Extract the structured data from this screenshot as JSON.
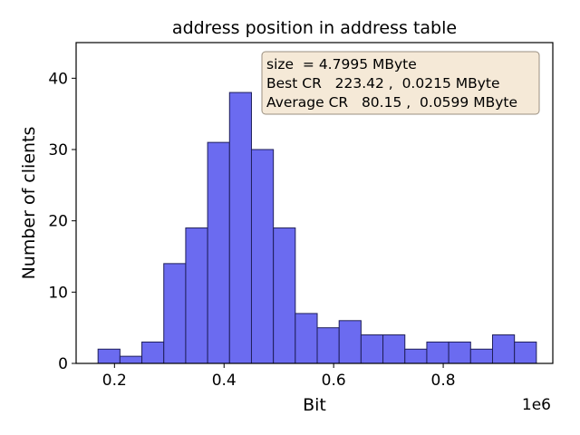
{
  "chart_data": {
    "type": "bar",
    "title": "address position in address table",
    "xlabel": "Bit",
    "ylabel": "Number of clients",
    "x_offset_label": "1e6",
    "xlim": [
      0.13,
      1.0
    ],
    "ylim": [
      0,
      45
    ],
    "xticks": [
      0.2,
      0.4,
      0.6,
      0.8
    ],
    "xtick_labels": [
      "0.2",
      "0.4",
      "0.6",
      "0.8"
    ],
    "yticks": [
      0,
      10,
      20,
      30,
      40
    ],
    "ytick_labels": [
      "0",
      "10",
      "20",
      "30",
      "40"
    ],
    "bin_edges": [
      0.17,
      0.21,
      0.25,
      0.29,
      0.33,
      0.37,
      0.41,
      0.45,
      0.49,
      0.53,
      0.57,
      0.61,
      0.65,
      0.69,
      0.73,
      0.77,
      0.81,
      0.85,
      0.89,
      0.93,
      0.97
    ],
    "values": [
      2,
      1,
      3,
      14,
      19,
      31,
      38,
      30,
      19,
      7,
      5,
      6,
      4,
      4,
      2,
      3,
      3,
      2,
      4,
      3
    ],
    "grid": false,
    "annotation": {
      "lines": [
        "size  = 4.7995 MByte",
        "Best CR   223.42 ,  0.0215 MByte",
        "Average CR   80.15 ,  0.0599 MByte"
      ],
      "placement": "top-right"
    },
    "colors": {
      "bar_fill": "#6b6bf0",
      "bar_edge": "#1f1f5a",
      "annotation_bg": "#f5e9d7"
    }
  }
}
